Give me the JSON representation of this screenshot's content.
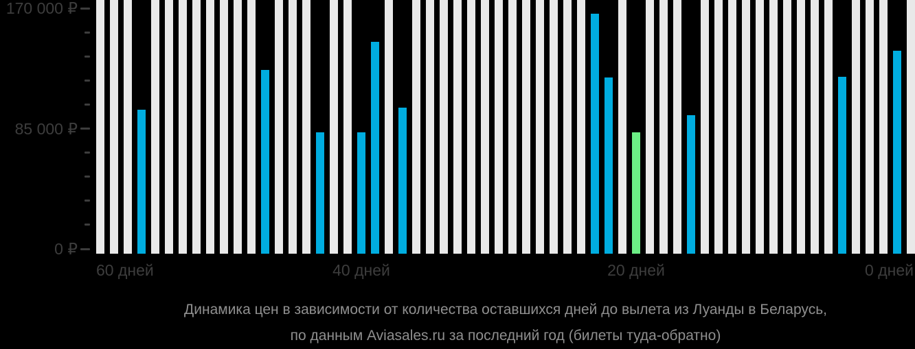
{
  "chart_data": {
    "type": "bar",
    "title": "Динамика цен в зависимости от количества оставшихся дней до вылета из Луанды в Беларусь,",
    "subtitle": "по данным Aviasales.ru за последний год (билеты туда-обратно)",
    "x_axis": {
      "label_unit": "дней",
      "days_range": [
        59,
        0
      ],
      "ticks": [
        {
          "day": 60,
          "label": "60 дней",
          "anchor": "left"
        },
        {
          "day": 40,
          "label": "40 дней",
          "anchor": "center"
        },
        {
          "day": 20,
          "label": "20 дней",
          "anchor": "center"
        },
        {
          "day": 0,
          "label": "0 дней",
          "anchor": "right"
        }
      ]
    },
    "y_axis": {
      "currency": "₽",
      "ylim": [
        0,
        176000
      ],
      "major_ticks": [
        {
          "value": 170000,
          "label": "170 000 ₽"
        },
        {
          "value": 85000,
          "label": "85 000 ₽"
        },
        {
          "value": 0,
          "label": "0 ₽"
        }
      ],
      "minor_tick_values": [
        17000,
        34000,
        51000,
        68000,
        102000,
        119000,
        136000,
        153000
      ]
    },
    "series": [
      {
        "days_before_departure": 56,
        "price_rub": 98000,
        "is_min": false
      },
      {
        "days_before_departure": 47,
        "price_rub": 125000,
        "is_min": false
      },
      {
        "days_before_departure": 43,
        "price_rub": 82500,
        "is_min": false
      },
      {
        "days_before_departure": 40,
        "price_rub": 82500,
        "is_min": false
      },
      {
        "days_before_departure": 39,
        "price_rub": 144000,
        "is_min": false
      },
      {
        "days_before_departure": 37,
        "price_rub": 99000,
        "is_min": false
      },
      {
        "days_before_departure": 23,
        "price_rub": 163000,
        "is_min": false
      },
      {
        "days_before_departure": 22,
        "price_rub": 119500,
        "is_min": false
      },
      {
        "days_before_departure": 20,
        "price_rub": 82500,
        "is_min": true
      },
      {
        "days_before_departure": 16,
        "price_rub": 94000,
        "is_min": false
      },
      {
        "days_before_departure": 5,
        "price_rub": 120000,
        "is_min": false
      },
      {
        "days_before_departure": 1,
        "price_rub": 138000,
        "is_min": false
      }
    ],
    "colors": {
      "background": "#000000",
      "bar_no_data": "#E9E9E9",
      "bar_price": "#00ADE0",
      "bar_min_price": "#6CEE85",
      "axis_text": "#3D3D3D",
      "tick_mark": "#3D3D3D",
      "caption_text": "#8F8F8F"
    },
    "grid": "off",
    "legend": "none"
  }
}
